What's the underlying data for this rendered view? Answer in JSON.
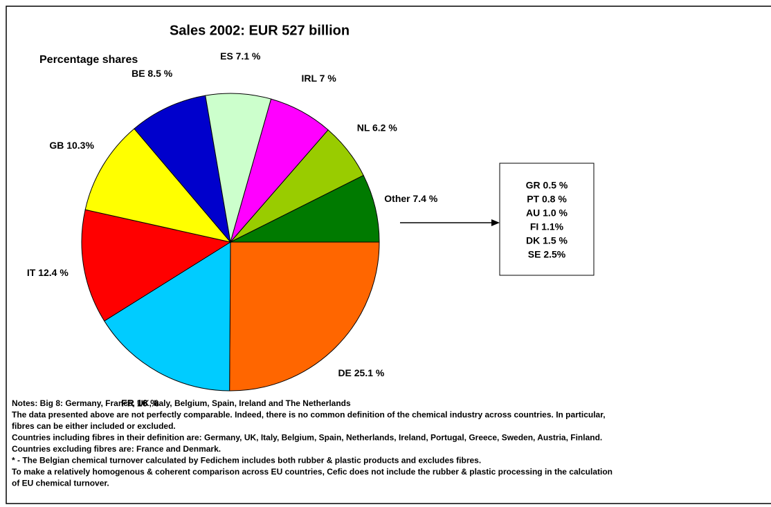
{
  "chart_data": {
    "type": "pie",
    "title": "Sales 2002: EUR 527 billion",
    "subtitle": "Percentage shares",
    "values": [
      25.1,
      16,
      12.4,
      10.3,
      8.5,
      7.1,
      7,
      6.2,
      7.4
    ],
    "value_labels": [
      "DE 25.1 %",
      "FR 16 %",
      "IT 12.4 %",
      "GB 10.3%",
      "BE 8.5 %",
      "ES 7.1 %",
      "IRL 7 %",
      "NL 6.2 %",
      "Other 7.4 %"
    ],
    "colors": [
      "#ff6600",
      "#00ccff",
      "#ff0000",
      "#ffff00",
      "#0000cc",
      "#ccffcc",
      "#ff00ff",
      "#99cc00",
      "#007a00"
    ],
    "other_breakdown": [
      "GR 0.5 %",
      "PT 0.8 %",
      "AU 1.0 %",
      "FI 1.1%",
      "DK 1.5 %",
      "SE 2.5%"
    ],
    "notes": [
      "Notes: Big 8: Germany, France, UK, Italy, Belgium, Spain, Ireland and The Netherlands",
      "The data presented above are not perfectly comparable. Indeed, there is no common definition of the chemical industry across countries. In particular,",
      "fibres can be either included or excluded.",
      "Countries including fibres in their definition are: Germany, UK, Italy, Belgium, Spain, Netherlands, Ireland, Portugal, Greece, Sweden, Austria, Finland.",
      "Countries excluding fibres are: France and Denmark.",
      "* - The Belgian chemical turnover calculated by Fedichem includes both rubber & plastic products and excludes fibres.",
      "To make a relatively homogenous & coherent comparison across EU countries, Cefic does not include the rubber & plastic processing in the calculation",
      "of EU chemical turnover."
    ]
  }
}
